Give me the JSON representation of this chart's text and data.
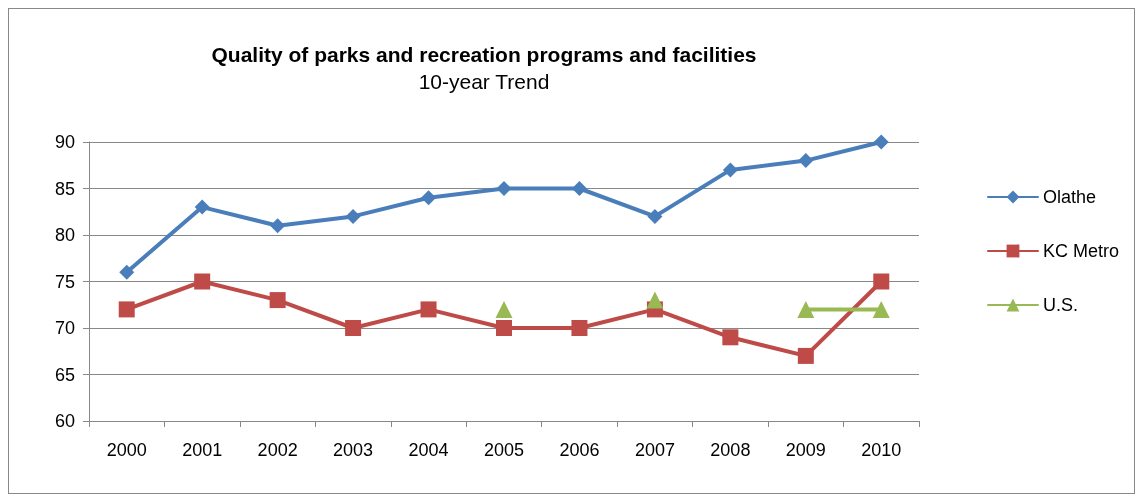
{
  "chart_data": {
    "type": "line",
    "title": "Quality of parks and recreation programs and facilities",
    "subtitle": "10-year Trend",
    "categories": [
      "2000",
      "2001",
      "2002",
      "2003",
      "2004",
      "2005",
      "2006",
      "2007",
      "2008",
      "2009",
      "2010"
    ],
    "series": [
      {
        "name": "Olathe",
        "color": "#4a7ebb",
        "marker": "diamond",
        "values": [
          76,
          83,
          81,
          82,
          84,
          85,
          85,
          82,
          87,
          88,
          90
        ]
      },
      {
        "name": "KC Metro",
        "color": "#be4b48",
        "marker": "square",
        "values": [
          72,
          75,
          73,
          70,
          72,
          70,
          70,
          72,
          69,
          67,
          75
        ]
      },
      {
        "name": "U.S.",
        "color": "#98b954",
        "marker": "triangle",
        "values": [
          null,
          null,
          null,
          null,
          null,
          72,
          null,
          73,
          null,
          72,
          72
        ]
      }
    ],
    "ylim": [
      60,
      90
    ],
    "yticks": [
      60,
      65,
      70,
      75,
      80,
      85,
      90
    ],
    "grid": "y",
    "legend": "right",
    "line_style": "solid"
  }
}
